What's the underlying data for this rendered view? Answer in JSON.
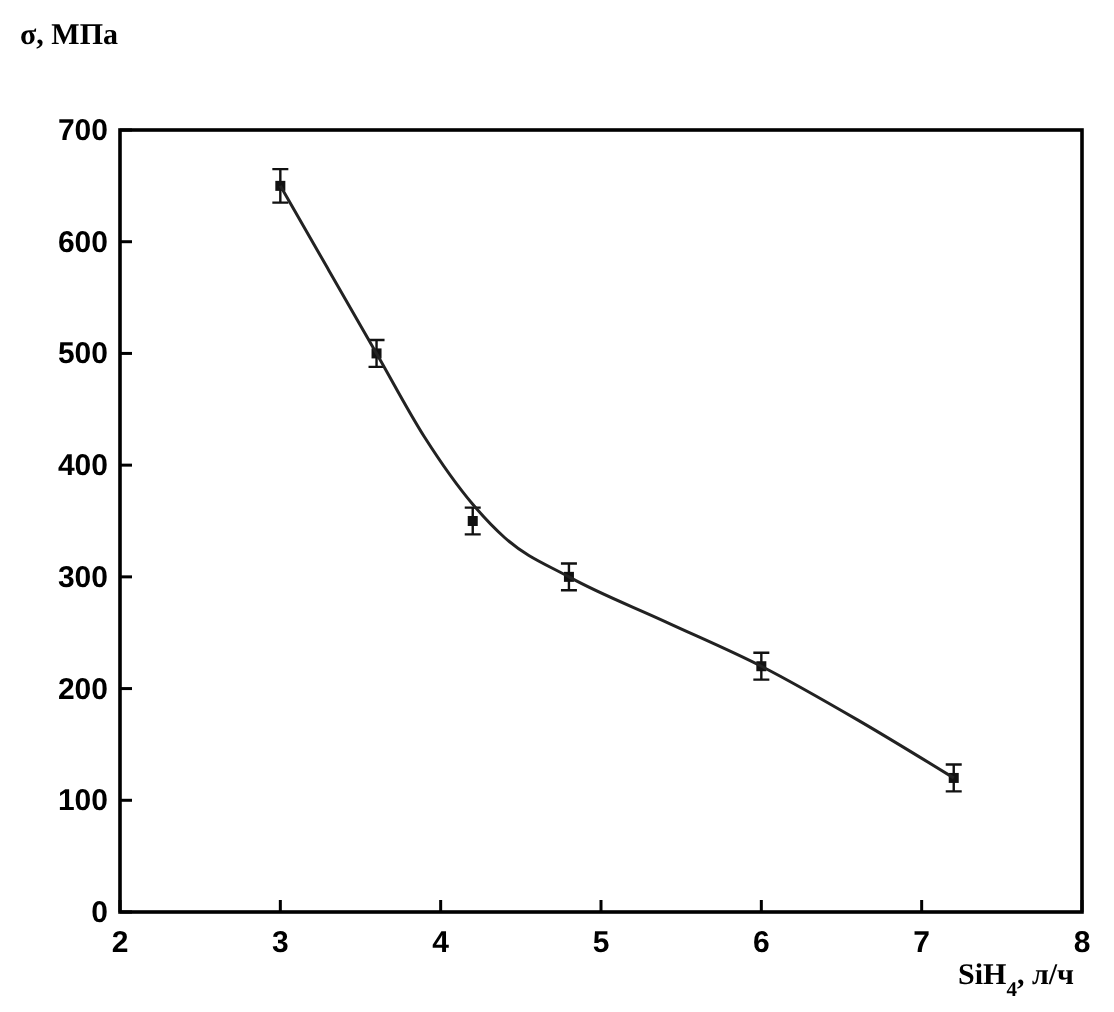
{
  "chart_data": {
    "type": "scatter",
    "xlabel": "SiH$_{4}$, л/ч",
    "ylabel": "σ, МПа",
    "xlim": [
      2,
      8
    ],
    "xticks": [
      2,
      3,
      4,
      5,
      6,
      7,
      8
    ],
    "ylim": [
      0,
      700
    ],
    "yticks": [
      0,
      100,
      200,
      300,
      400,
      500,
      600,
      700
    ],
    "grid": false,
    "marker": "square",
    "series": [
      {
        "color": "#111111",
        "x": [
          3,
          3.6,
          4.2,
          4.8,
          6,
          7.2
        ],
        "values": [
          650,
          500,
          350,
          300,
          220,
          120
        ],
        "errors": [
          15,
          12,
          12,
          12,
          12,
          12
        ]
      },
      {
        "type": "line",
        "color": "#222222",
        "marker": "none",
        "line_style": "solid",
        "x": [
          3,
          3.3,
          3.6,
          3.9,
          4.2,
          4.4,
          4.8,
          5.4,
          6,
          6.6,
          7.2
        ],
        "values": [
          650,
          575,
          500,
          425,
          365,
          335,
          300,
          260,
          220,
          172,
          120
        ]
      }
    ]
  }
}
